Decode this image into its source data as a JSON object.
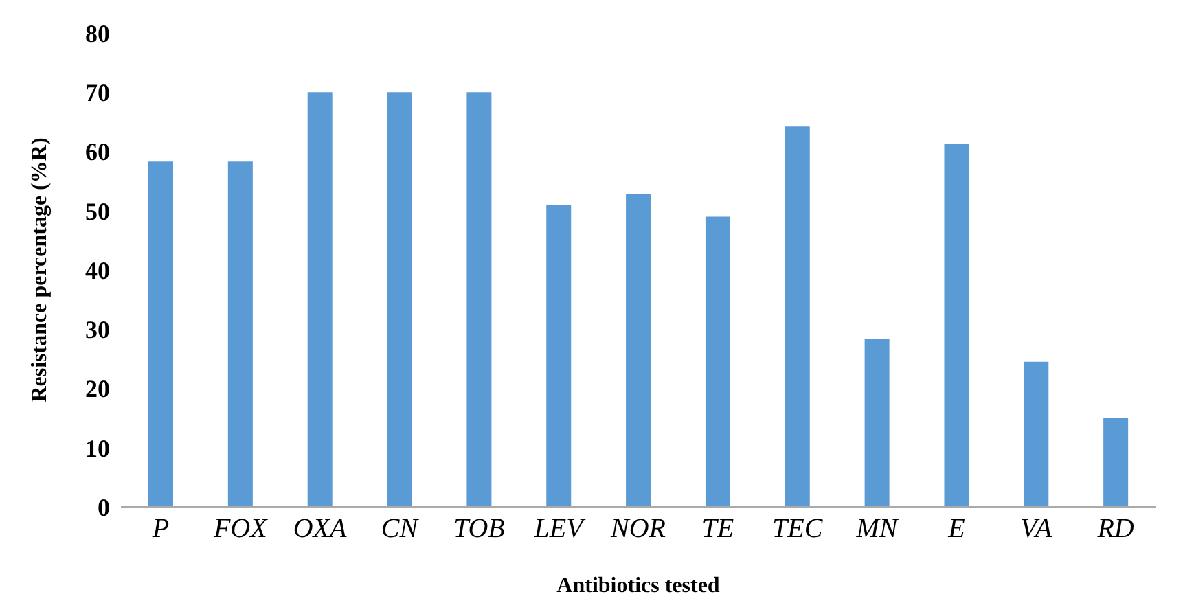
{
  "chart_data": {
    "type": "bar",
    "xlabel": "Antibiotics tested",
    "ylabel": "Resistance percentage (%R)",
    "categories": [
      "P",
      "FOX",
      "OXA",
      "CN",
      "TOB",
      "LEV",
      "NOR",
      "TE",
      "TEC",
      "MN",
      "E",
      "VA",
      "RD"
    ],
    "values": [
      58.3,
      58.3,
      70,
      70,
      70,
      50.9,
      52.8,
      49,
      64.2,
      28.3,
      61.3,
      24.5,
      15
    ],
    "color": "#5b9bd5",
    "ylim": [
      0,
      80
    ],
    "yticks": [
      0,
      10,
      20,
      30,
      40,
      50,
      60,
      70,
      80
    ],
    "grid": false,
    "legend": false
  }
}
